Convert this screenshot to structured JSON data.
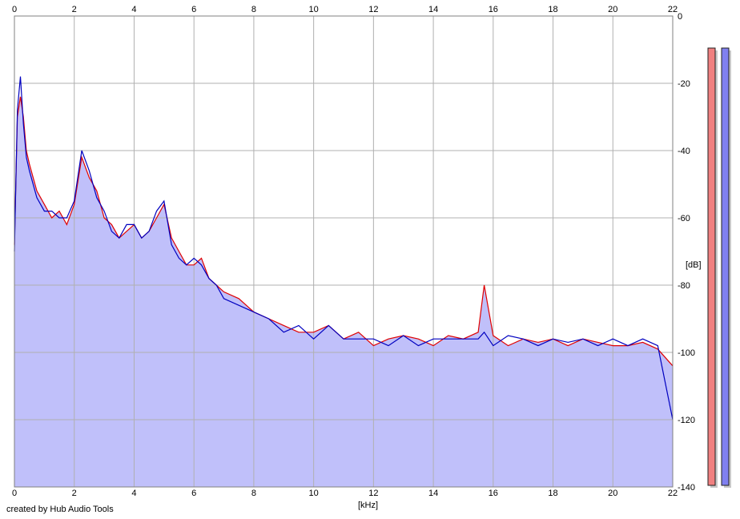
{
  "app": {
    "credit": "created by Hub Audio Tools"
  },
  "colors": {
    "background": "#ffffff",
    "plot_background": "#ffffff",
    "fill": "#c0c0fa",
    "grid": "#b0b0b0",
    "left_channel": "#e00000",
    "right_channel": "#0000c0",
    "left_meter": "#f08080",
    "right_meter": "#8080f0"
  },
  "meters": {
    "left_level": 1.0,
    "right_level": 1.0
  },
  "chart_data": {
    "type": "line",
    "title": "",
    "xlabel": "[kHz]",
    "ylabel": "[dB]",
    "xlim": [
      0,
      22
    ],
    "ylim": [
      -140,
      0
    ],
    "x_ticks": [
      "0",
      "2",
      "4",
      "6",
      "8",
      "10",
      "12",
      "14",
      "16",
      "18",
      "20",
      "22"
    ],
    "y_ticks": [
      "0",
      "-20",
      "-40",
      "-60",
      "-80",
      "-100",
      "-120",
      "-140"
    ],
    "grid": true,
    "area_fill": true,
    "x": [
      0,
      0.1,
      0.2,
      0.3,
      0.4,
      0.5,
      0.75,
      1.0,
      1.25,
      1.5,
      1.75,
      2.0,
      2.25,
      2.5,
      2.75,
      3.0,
      3.25,
      3.5,
      3.75,
      4.0,
      4.25,
      4.5,
      4.75,
      5.0,
      5.25,
      5.5,
      5.75,
      6.0,
      6.25,
      6.5,
      6.75,
      7.0,
      7.5,
      8.0,
      8.5,
      9.0,
      9.5,
      10.0,
      10.5,
      11.0,
      11.5,
      12.0,
      12.5,
      13.0,
      13.5,
      14.0,
      14.5,
      15.0,
      15.5,
      15.7,
      16.0,
      16.5,
      17.0,
      17.5,
      18.0,
      18.5,
      19.0,
      19.5,
      20.0,
      20.5,
      21.0,
      21.5,
      22.0
    ],
    "series": [
      {
        "name": "",
        "color": "#e00000",
        "values": [
          -68,
          -30,
          -24,
          -30,
          -40,
          -44,
          -52,
          -56,
          -60,
          -58,
          -62,
          -56,
          -42,
          -48,
          -52,
          -60,
          -62,
          -66,
          -64,
          -62,
          -66,
          -64,
          -60,
          -56,
          -66,
          -70,
          -74,
          -74,
          -72,
          -78,
          -80,
          -82,
          -84,
          -88,
          -90,
          -92,
          -94,
          -94,
          -92,
          -96,
          -94,
          -98,
          -96,
          -95,
          -96,
          -98,
          -95,
          -96,
          -94,
          -80,
          -95,
          -98,
          -96,
          -97,
          -96,
          -98,
          -96,
          -97,
          -98,
          -98,
          -97,
          -99,
          -104
        ]
      },
      {
        "name": "",
        "color": "#0000c0",
        "values": [
          -70,
          -28,
          -18,
          -32,
          -42,
          -46,
          -54,
          -58,
          -58,
          -60,
          -60,
          -55,
          -40,
          -46,
          -54,
          -58,
          -64,
          -66,
          -62,
          -62,
          -66,
          -64,
          -58,
          -55,
          -68,
          -72,
          -74,
          -72,
          -74,
          -78,
          -80,
          -84,
          -86,
          -88,
          -90,
          -94,
          -92,
          -96,
          -92,
          -96,
          -96,
          -96,
          -98,
          -95,
          -98,
          -96,
          -96,
          -96,
          -96,
          -94,
          -98,
          -95,
          -96,
          -98,
          -96,
          -97,
          -96,
          -98,
          -96,
          -98,
          -96,
          -98,
          -120
        ]
      }
    ]
  }
}
